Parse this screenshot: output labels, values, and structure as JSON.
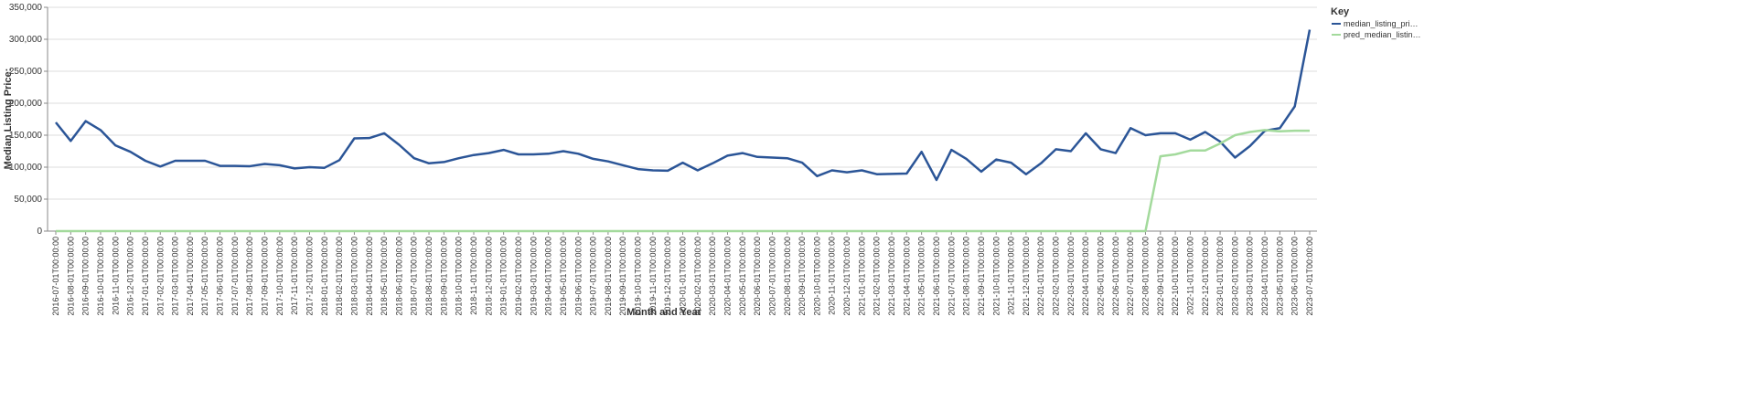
{
  "chart_data": {
    "type": "line",
    "x_label": "Month and Year",
    "y_label": "Median Listing Price:",
    "legend_title": "Key",
    "categories": [
      "2016-07-01T00:00:00",
      "2016-08-01T00:00:00",
      "2016-09-01T00:00:00",
      "2016-10-01T00:00:00",
      "2016-11-01T00:00:00",
      "2016-12-01T00:00:00",
      "2017-01-01T00:00:00",
      "2017-02-01T00:00:00",
      "2017-03-01T00:00:00",
      "2017-04-01T00:00:00",
      "2017-05-01T00:00:00",
      "2017-06-01T00:00:00",
      "2017-07-01T00:00:00",
      "2017-08-01T00:00:00",
      "2017-09-01T00:00:00",
      "2017-10-01T00:00:00",
      "2017-11-01T00:00:00",
      "2017-12-01T00:00:00",
      "2018-01-01T00:00:00",
      "2018-02-01T00:00:00",
      "2018-03-01T00:00:00",
      "2018-04-01T00:00:00",
      "2018-05-01T00:00:00",
      "2018-06-01T00:00:00",
      "2018-07-01T00:00:00",
      "2018-08-01T00:00:00",
      "2018-09-01T00:00:00",
      "2018-10-01T00:00:00",
      "2018-11-01T00:00:00",
      "2018-12-01T00:00:00",
      "2019-01-01T00:00:00",
      "2019-02-01T00:00:00",
      "2019-03-01T00:00:00",
      "2019-04-01T00:00:00",
      "2019-05-01T00:00:00",
      "2019-06-01T00:00:00",
      "2019-07-01T00:00:00",
      "2019-08-01T00:00:00",
      "2019-09-01T00:00:00",
      "2019-10-01T00:00:00",
      "2019-11-01T00:00:00",
      "2019-12-01T00:00:00",
      "2020-01-01T00:00:00",
      "2020-02-01T00:00:00",
      "2020-03-01T00:00:00",
      "2020-04-01T00:00:00",
      "2020-05-01T00:00:00",
      "2020-06-01T00:00:00",
      "2020-07-01T00:00:00",
      "2020-08-01T00:00:00",
      "2020-09-01T00:00:00",
      "2020-10-01T00:00:00",
      "2020-11-01T00:00:00",
      "2020-12-01T00:00:00",
      "2021-01-01T00:00:00",
      "2021-02-01T00:00:00",
      "2021-03-01T00:00:00",
      "2021-04-01T00:00:00",
      "2021-05-01T00:00:00",
      "2021-06-01T00:00:00",
      "2021-07-01T00:00:00",
      "2021-08-01T00:00:00",
      "2021-09-01T00:00:00",
      "2021-10-01T00:00:00",
      "2021-11-01T00:00:00",
      "2021-12-01T00:00:00",
      "2022-01-01T00:00:00",
      "2022-02-01T00:00:00",
      "2022-03-01T00:00:00",
      "2022-04-01T00:00:00",
      "2022-05-01T00:00:00",
      "2022-06-01T00:00:00",
      "2022-07-01T00:00:00",
      "2022-08-01T00:00:00",
      "2022-09-01T00:00:00",
      "2022-10-01T00:00:00",
      "2022-11-01T00:00:00",
      "2022-12-01T00:00:00",
      "2023-01-01T00:00:00",
      "2023-02-01T00:00:00",
      "2023-03-01T00:00:00",
      "2023-04-01T00:00:00",
      "2023-05-01T00:00:00",
      "2023-06-01T00:00:00",
      "2023-07-01T00:00:00"
    ],
    "series": [
      {
        "name": "median_listing_pri…",
        "color": "#2b5597",
        "values": [
          170000,
          141000,
          172000,
          158000,
          134000,
          124000,
          110000,
          101000,
          110000,
          110000,
          110000,
          102000,
          102000,
          101500,
          105000,
          103000,
          98000,
          100000,
          99000,
          111000,
          145000,
          145500,
          153000,
          135000,
          114000,
          106000,
          108000,
          114000,
          119000,
          122000,
          127000,
          120000,
          120000,
          121000,
          125000,
          121000,
          113000,
          109000,
          103000,
          97000,
          95000,
          94500,
          107000,
          95000,
          106000,
          118000,
          122000,
          116000,
          115000,
          114000,
          107000,
          86000,
          95000,
          92000,
          95000,
          89000,
          89500,
          90000,
          124000,
          80000,
          127000,
          113000,
          93000,
          112000,
          107000,
          89000,
          106000,
          128000,
          125000,
          153000,
          128000,
          122000,
          161000,
          150000,
          153000,
          153000,
          143000,
          155000,
          140000,
          115000,
          133000,
          157000,
          161000,
          195000,
          315000
        ]
      },
      {
        "name": "pred_median_listin…",
        "color": "#a3da9c",
        "values": [
          0,
          0,
          0,
          0,
          0,
          0,
          0,
          0,
          0,
          0,
          0,
          0,
          0,
          0,
          0,
          0,
          0,
          0,
          0,
          0,
          0,
          0,
          0,
          0,
          0,
          0,
          0,
          0,
          0,
          0,
          0,
          0,
          0,
          0,
          0,
          0,
          0,
          0,
          0,
          0,
          0,
          0,
          0,
          0,
          0,
          0,
          0,
          0,
          0,
          0,
          0,
          0,
          0,
          0,
          0,
          0,
          0,
          0,
          0,
          0,
          0,
          0,
          0,
          0,
          0,
          0,
          0,
          0,
          0,
          0,
          0,
          0,
          0,
          0,
          117000,
          120000,
          126000,
          126000,
          137000,
          150000,
          155000,
          158000,
          156000,
          157000,
          157000
        ]
      }
    ],
    "ylim": [
      0,
      350000
    ],
    "yticks": [
      0,
      {
        "value": 50000,
        "label": "50,000"
      },
      {
        "value": 100000,
        "label": "100,000"
      },
      {
        "value": 150000,
        "label": "150,000"
      },
      {
        "value": 200000,
        "label": "200,000"
      },
      {
        "value": 250000,
        "label": "250,000"
      },
      {
        "value": 300000,
        "label": "300,000"
      },
      {
        "value": 350000,
        "label": "350,000"
      }
    ],
    "grid": true
  }
}
